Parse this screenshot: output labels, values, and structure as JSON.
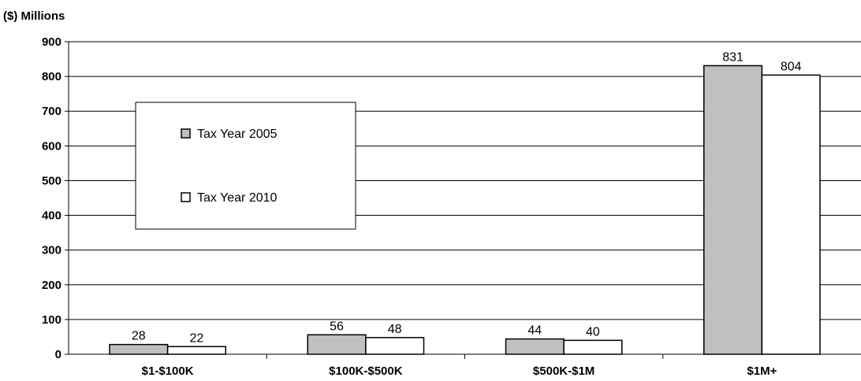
{
  "chart_data": {
    "type": "bar",
    "ylabel": "($) Millions",
    "categories": [
      "$1-$100K",
      "$100K-$500K",
      "$500K-$1M",
      "$1M+"
    ],
    "series": [
      {
        "name": "Tax Year 2005",
        "values": [
          28,
          56,
          44,
          831
        ],
        "color": "#c0c0c0"
      },
      {
        "name": "Tax Year 2010",
        "values": [
          22,
          48,
          40,
          804
        ],
        "color": "#ffffff"
      }
    ],
    "ylim": [
      0,
      900
    ],
    "yticks": [
      0,
      100,
      200,
      300,
      400,
      500,
      600,
      700,
      800,
      900
    ],
    "grid": true,
    "legend": "upper-left inside plot"
  }
}
